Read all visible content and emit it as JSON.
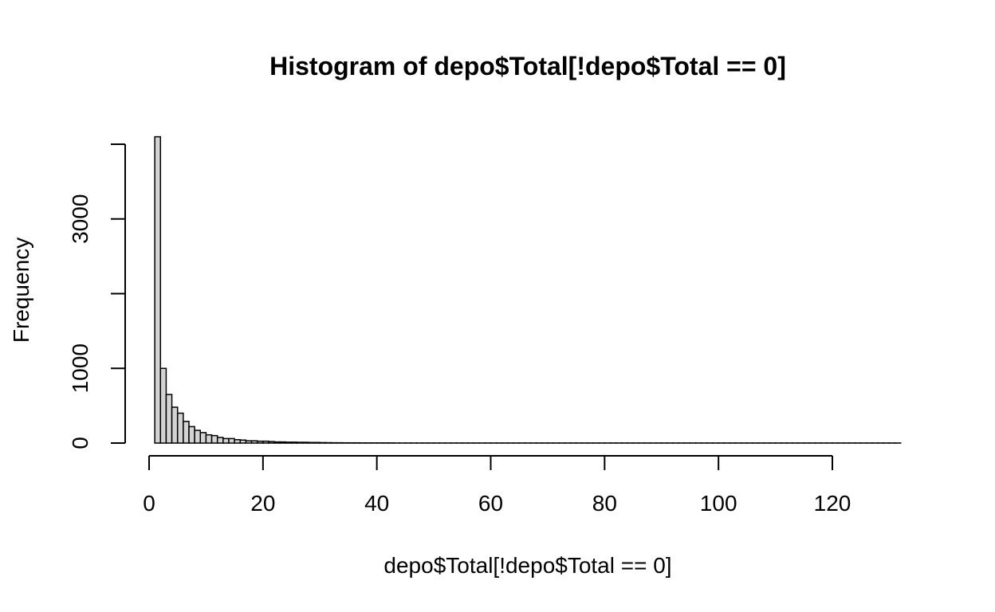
{
  "chart_data": {
    "type": "bar",
    "title": "Histogram of depo$Total[!depo$Total == 0]",
    "xlabel": "depo$Total[!depo$Total == 0]",
    "ylabel": "Frequency",
    "bin_width": 1,
    "bin_start": 1,
    "x_ticks": [
      0,
      20,
      40,
      60,
      80,
      100,
      120
    ],
    "y_ticks": [
      0,
      1000,
      3000
    ],
    "y_minor_ticks": [
      2000,
      4000
    ],
    "xlim": [
      0,
      132
    ],
    "ylim": [
      0,
      4100
    ],
    "values": [
      4100,
      1000,
      650,
      480,
      400,
      290,
      220,
      170,
      140,
      110,
      100,
      75,
      60,
      60,
      45,
      40,
      30,
      30,
      25,
      25,
      20,
      15,
      15,
      12,
      12,
      10,
      10,
      8,
      8,
      6,
      5,
      4,
      4,
      3,
      3,
      3,
      2,
      2,
      2,
      2,
      2,
      2,
      1,
      1,
      1,
      1,
      1,
      1,
      1,
      1,
      1,
      1,
      1,
      1,
      1,
      1,
      1,
      1,
      1,
      1,
      1,
      1,
      1,
      1,
      1,
      1,
      1,
      1,
      1,
      1,
      1,
      1,
      1,
      1,
      1,
      1,
      1,
      1,
      1,
      1,
      1,
      1,
      1,
      1,
      1,
      1,
      1,
      1,
      1,
      1,
      1,
      1,
      1,
      1,
      1,
      1,
      1,
      1,
      1,
      1,
      1,
      1,
      1,
      1,
      1,
      1,
      1,
      1,
      1,
      1,
      1,
      1,
      1,
      1,
      1,
      1,
      1,
      1,
      1,
      1,
      1,
      1,
      1,
      1,
      1,
      1,
      1,
      1,
      1,
      1,
      1
    ],
    "colors": {
      "bar_fill": "#d3d3d3",
      "bar_stroke": "#000000"
    }
  }
}
